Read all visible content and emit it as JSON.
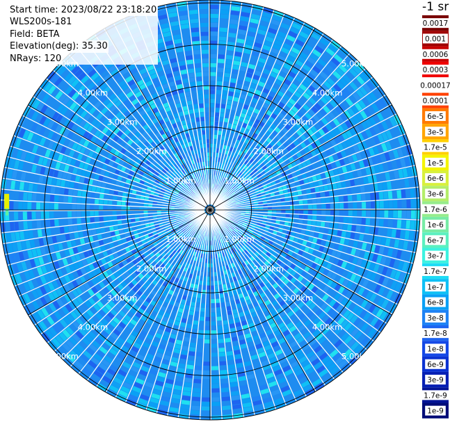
{
  "info": {
    "start_time": "Start time: 2023/08/22 23:18:20",
    "instrument": "WLS200s-181",
    "field": "Field: BETA",
    "elevation": "Elevation(deg): 35.30",
    "nrays": "NRays: 120"
  },
  "chart_data": {
    "type": "heatmap",
    "projection": "polar-ppi",
    "field": "BETA",
    "unit": "-1 sr",
    "n_rays": 120,
    "range_rings_km": [
      1,
      2,
      3,
      4,
      5
    ],
    "ring_labels": [
      "1.00km",
      "2.00km",
      "3.00km",
      "4.00km",
      "5.00km"
    ],
    "spokes_deg": [
      0,
      30,
      60,
      90,
      120,
      150,
      180,
      210,
      240,
      270,
      300,
      330
    ],
    "dominant_color": "#1e8cf0",
    "highlight": {
      "azimuth_deg": 272,
      "range_km": 4.9,
      "value": "3e-6"
    },
    "colorbar": {
      "labels": [
        "0.0017",
        "0.001",
        "0.0006",
        "0.0003",
        "0.00017",
        "0.0001",
        "6e-5",
        "3e-5",
        "1.7e-5",
        "1e-5",
        "6e-6",
        "3e-6",
        "1.7e-6",
        "1e-6",
        "6e-7",
        "3e-7",
        "1.7e-7",
        "1e-7",
        "6e-8",
        "3e-8",
        "1.7e-8",
        "1e-8",
        "6e-9",
        "3e-9",
        "1.7e-9",
        "1e-9"
      ],
      "colors": [
        "#780000",
        "#a00000",
        "#c80000",
        "#f00000",
        "#ffffff",
        "#ff4000",
        "#ff7a00",
        "#ffa500",
        "#ffd000",
        "#f4f400",
        "#d8f03c",
        "#b4ee6a",
        "#96ec8c",
        "#78eca6",
        "#5cf0c0",
        "#3cf2e0",
        "#1edcf5",
        "#0fc0f5",
        "#0aa0f5",
        "#1e82f5",
        "#1e64f0",
        "#1448e6",
        "#0a32d2",
        "#0520b4",
        "#031496",
        "#000c78"
      ]
    }
  }
}
